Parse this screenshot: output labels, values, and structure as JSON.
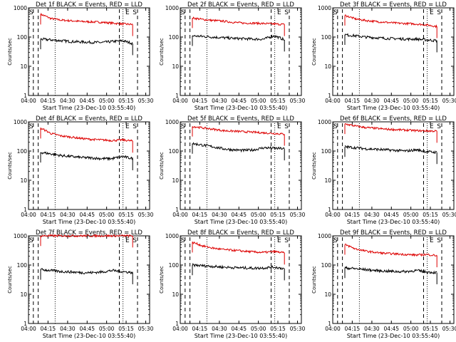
{
  "chart_data": [
    {
      "type": "line",
      "title": "Det 1f BLACK = Events, RED = LLD",
      "xlabel": "Start Time (23-Dec-10 03:55:40)",
      "ylabel": "Counts/sec",
      "x_ticks": [
        "04:00",
        "04:15",
        "04:30",
        "04:45",
        "05:00",
        "05:15",
        "05:30"
      ],
      "yscale": "log",
      "ylim": [
        1,
        1000
      ],
      "y_ticks": [
        "1",
        "10",
        "100",
        "1000"
      ],
      "markers": [
        "E",
        "S"
      ],
      "series": [
        {
          "name": "RED",
          "color": "#dd0000",
          "values": [
            600,
            430,
            380,
            360,
            340,
            330,
            320,
            300,
            280,
            270
          ]
        },
        {
          "name": "BLACK",
          "color": "#000000",
          "values": [
            85,
            80,
            75,
            70,
            68,
            66,
            65,
            70,
            75,
            60
          ]
        }
      ]
    },
    {
      "type": "line",
      "title": "Det 2f BLACK = Events, RED = LLD",
      "xlabel": "Start Time (23-Dec-10 03:55:40)",
      "ylabel": "Counts/sec",
      "x_ticks": [
        "04:00",
        "04:15",
        "04:30",
        "04:45",
        "05:00",
        "05:15",
        "05:30"
      ],
      "yscale": "log",
      "ylim": [
        1,
        1000
      ],
      "y_ticks": [
        "1",
        "10",
        "100",
        "1000"
      ],
      "markers": [
        "E",
        "S"
      ],
      "series": [
        {
          "name": "RED",
          "color": "#dd0000",
          "values": [
            450,
            400,
            370,
            350,
            320,
            300,
            300,
            290,
            280,
            270
          ]
        },
        {
          "name": "BLACK",
          "color": "#000000",
          "values": [
            110,
            105,
            100,
            95,
            90,
            88,
            85,
            85,
            110,
            80
          ]
        }
      ]
    },
    {
      "type": "line",
      "title": "Det 3f BLACK = Events, RED = LLD",
      "xlabel": "Start Time (23-Dec-10 03:55:40)",
      "ylabel": "Counts/sec",
      "x_ticks": [
        "04:00",
        "04:15",
        "04:30",
        "04:45",
        "05:00",
        "05:15",
        "05:30"
      ],
      "yscale": "log",
      "ylim": [
        1,
        1000
      ],
      "y_ticks": [
        "1",
        "10",
        "100",
        "1000"
      ],
      "markers": [
        "E",
        "S"
      ],
      "series": [
        {
          "name": "RED",
          "color": "#dd0000",
          "values": [
            550,
            420,
            370,
            340,
            320,
            300,
            290,
            280,
            260,
            230
          ]
        },
        {
          "name": "BLACK",
          "color": "#000000",
          "values": [
            120,
            110,
            100,
            95,
            90,
            88,
            85,
            85,
            80,
            75
          ]
        }
      ]
    },
    {
      "type": "line",
      "title": "Det 4f BLACK = Events, RED = LLD",
      "xlabel": "Start Time (23-Dec-10 03:55:40)",
      "ylabel": "Counts/sec",
      "x_ticks": [
        "04:00",
        "04:15",
        "04:30",
        "04:45",
        "05:00",
        "05:15",
        "05:30"
      ],
      "yscale": "log",
      "ylim": [
        1,
        1000
      ],
      "y_ticks": [
        "1",
        "10",
        "100",
        "1000"
      ],
      "markers": [
        "E",
        "S"
      ],
      "series": [
        {
          "name": "RED",
          "color": "#dd0000",
          "values": [
            600,
            400,
            330,
            300,
            270,
            250,
            240,
            230,
            240,
            220
          ]
        },
        {
          "name": "BLACK",
          "color": "#000000",
          "values": [
            90,
            80,
            70,
            65,
            60,
            58,
            55,
            55,
            65,
            55
          ]
        }
      ]
    },
    {
      "type": "line",
      "title": "Det 5f BLACK = Events, RED = LLD",
      "xlabel": "Start Time (23-Dec-10 03:55:40)",
      "ylabel": "Counts/sec",
      "x_ticks": [
        "04:00",
        "04:15",
        "04:30",
        "04:45",
        "05:00",
        "05:15",
        "05:30"
      ],
      "yscale": "log",
      "ylim": [
        1,
        1000
      ],
      "y_ticks": [
        "1",
        "10",
        "100",
        "1000"
      ],
      "markers": [
        "E",
        "S"
      ],
      "series": [
        {
          "name": "RED",
          "color": "#dd0000",
          "values": [
            700,
            620,
            560,
            500,
            480,
            460,
            440,
            420,
            400,
            380
          ]
        },
        {
          "name": "BLACK",
          "color": "#000000",
          "values": [
            180,
            160,
            140,
            120,
            110,
            105,
            110,
            130,
            125,
            120
          ]
        }
      ]
    },
    {
      "type": "line",
      "title": "Det 6f BLACK = Events, RED = LLD",
      "xlabel": "Start Time (23-Dec-10 03:55:40)",
      "ylabel": "Counts/sec",
      "x_ticks": [
        "04:00",
        "04:15",
        "04:30",
        "04:45",
        "05:00",
        "05:15",
        "05:30"
      ],
      "yscale": "log",
      "ylim": [
        1,
        1000
      ],
      "y_ticks": [
        "1",
        "10",
        "100",
        "1000"
      ],
      "markers": [
        "E",
        "S"
      ],
      "series": [
        {
          "name": "RED",
          "color": "#dd0000",
          "values": [
            850,
            720,
            640,
            600,
            560,
            540,
            520,
            500,
            490,
            480
          ]
        },
        {
          "name": "BLACK",
          "color": "#000000",
          "values": [
            140,
            130,
            120,
            115,
            110,
            105,
            100,
            110,
            95,
            90
          ]
        }
      ]
    },
    {
      "type": "line",
      "title": "Det 7f BLACK = Events, RED = LLD",
      "xlabel": "Start Time (23-Dec-10 03:55:40)",
      "ylabel": "Counts/sec",
      "x_ticks": [
        "04:00",
        "04:15",
        "04:30",
        "04:45",
        "05:00",
        "05:15",
        "05:30"
      ],
      "yscale": "log",
      "ylim": [
        1,
        1000
      ],
      "y_ticks": [
        "1",
        "10",
        "100",
        "1000"
      ],
      "markers": [
        "E",
        "S"
      ],
      "series": [
        {
          "name": "RED",
          "color": "#dd0000",
          "values": [
            1000,
            1000,
            1000,
            1000,
            1000,
            1000,
            1000,
            1000,
            1000,
            1000
          ]
        },
        {
          "name": "BLACK",
          "color": "#000000",
          "values": [
            70,
            65,
            60,
            58,
            55,
            55,
            58,
            65,
            60,
            55
          ]
        }
      ]
    },
    {
      "type": "line",
      "title": "Det 8f BLACK = Events, RED = LLD",
      "xlabel": "Start Time (23-Dec-10 03:55:40)",
      "ylabel": "Counts/sec",
      "x_ticks": [
        "04:00",
        "04:15",
        "04:30",
        "04:45",
        "05:00",
        "05:15",
        "05:30"
      ],
      "yscale": "log",
      "ylim": [
        1,
        1000
      ],
      "y_ticks": [
        "1",
        "10",
        "100",
        "1000"
      ],
      "markers": [
        "E",
        "S"
      ],
      "series": [
        {
          "name": "RED",
          "color": "#dd0000",
          "values": [
            600,
            450,
            380,
            340,
            320,
            300,
            280,
            270,
            290,
            260
          ]
        },
        {
          "name": "BLACK",
          "color": "#000000",
          "values": [
            100,
            95,
            90,
            85,
            82,
            80,
            78,
            80,
            85,
            75
          ]
        }
      ]
    },
    {
      "type": "line",
      "title": "Det 9f BLACK = Events, RED = LLD",
      "xlabel": "Start Time (23-Dec-10 03:55:40)",
      "ylabel": "Counts/sec",
      "x_ticks": [
        "04:00",
        "04:15",
        "04:30",
        "04:45",
        "05:00",
        "05:15",
        "05:30"
      ],
      "yscale": "log",
      "ylim": [
        1,
        1000
      ],
      "y_ticks": [
        "1",
        "10",
        "100",
        "1000"
      ],
      "markers": [
        "E",
        "S"
      ],
      "series": [
        {
          "name": "RED",
          "color": "#dd0000",
          "values": [
            500,
            360,
            300,
            270,
            250,
            240,
            230,
            220,
            230,
            210
          ]
        },
        {
          "name": "BLACK",
          "color": "#000000",
          "values": [
            80,
            75,
            70,
            65,
            62,
            60,
            60,
            65,
            58,
            55
          ]
        }
      ]
    }
  ]
}
